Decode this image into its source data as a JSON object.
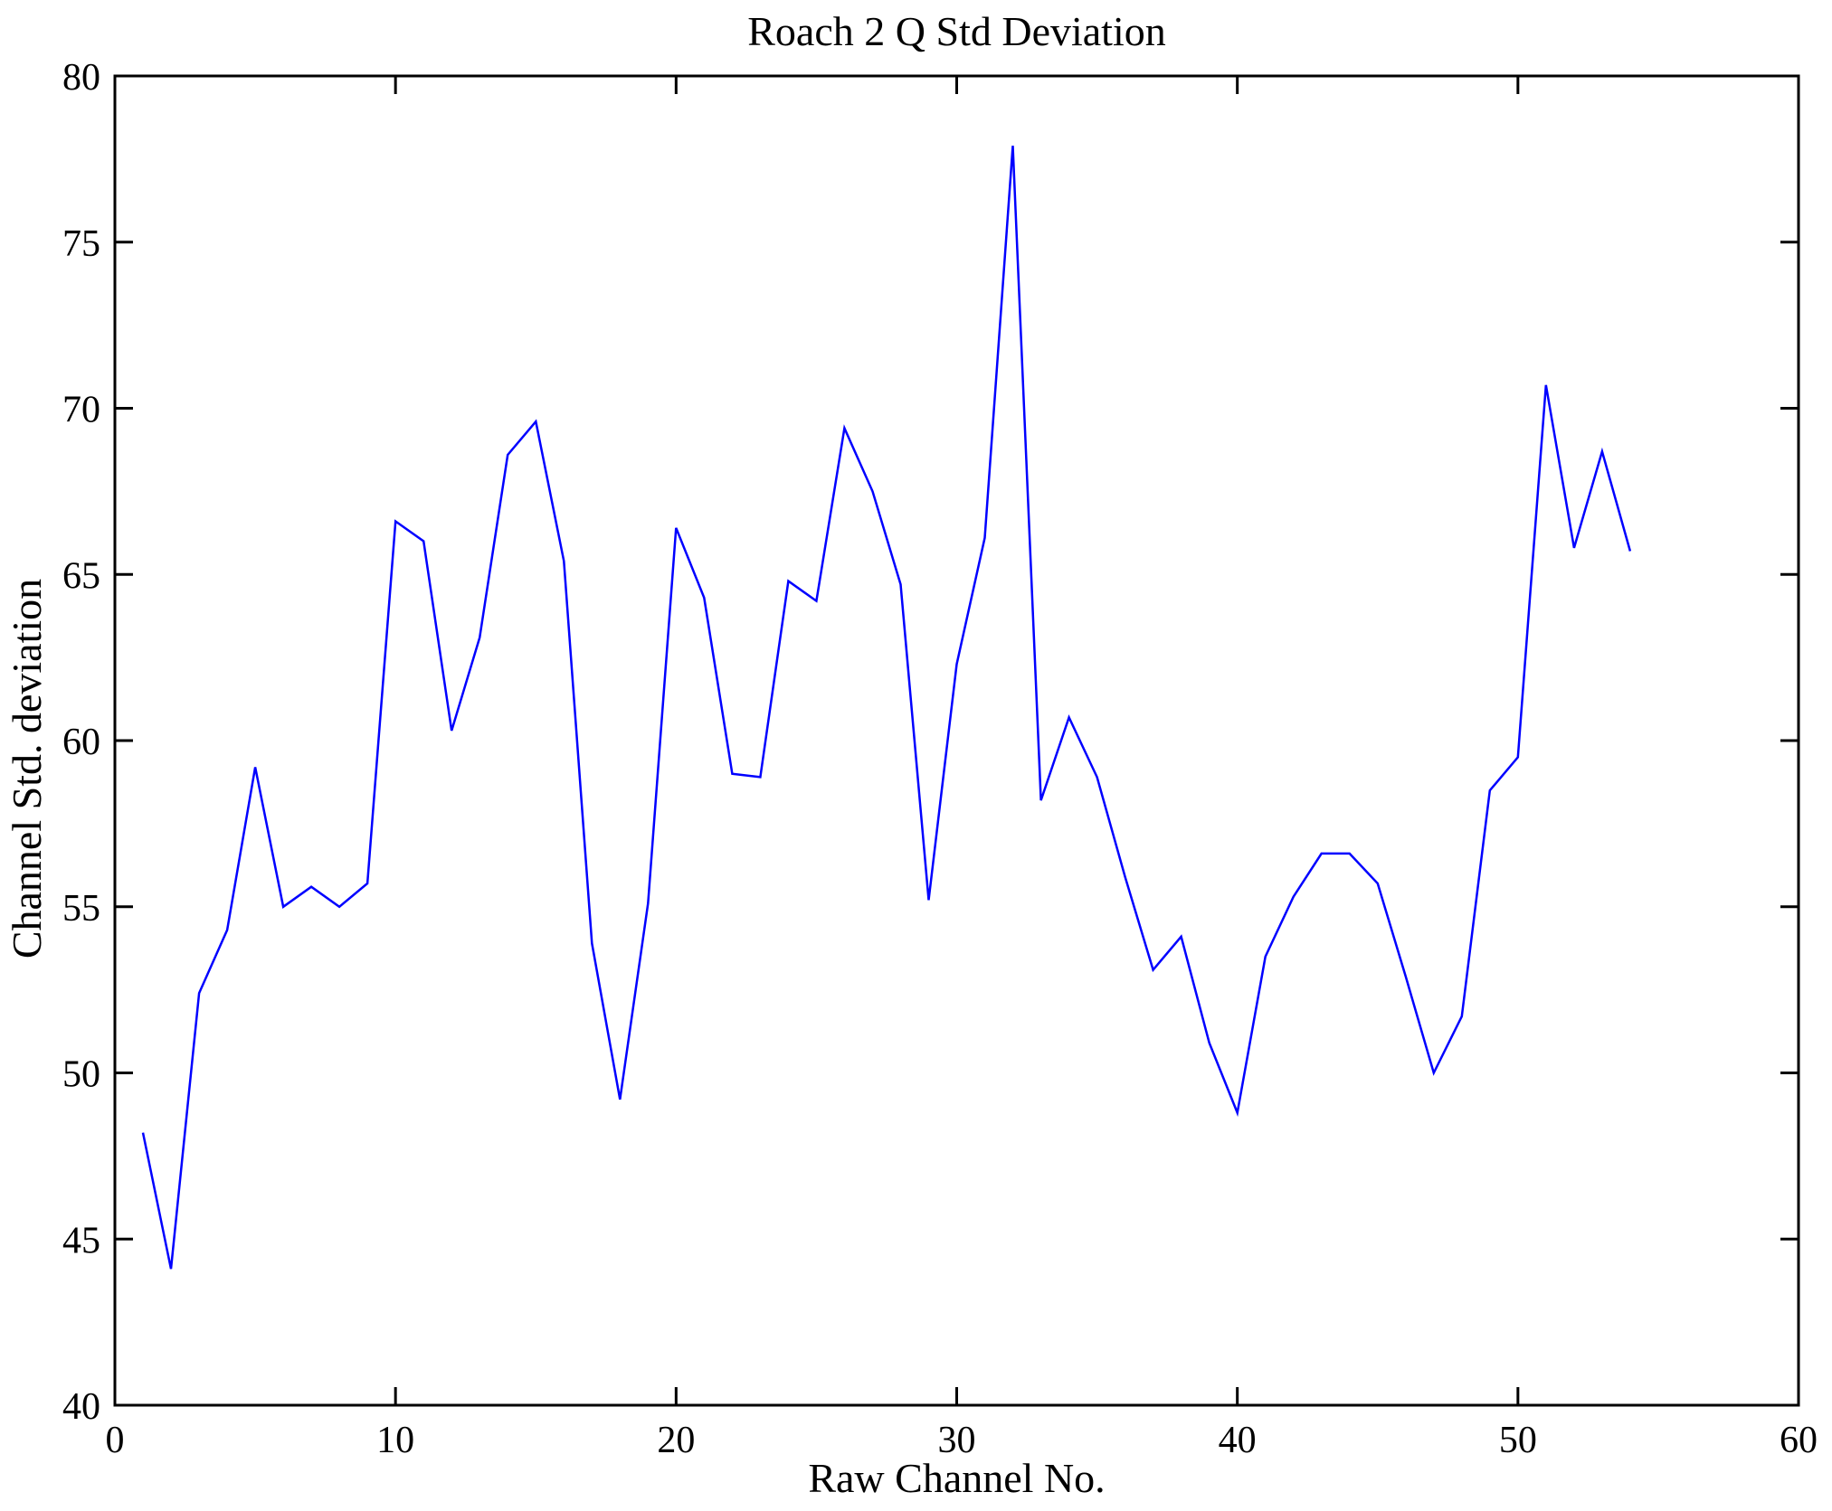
{
  "chart_data": {
    "type": "line",
    "title": "Roach 2 Q Std Deviation",
    "xlabel": "Raw Channel No.",
    "ylabel": "Channel Std. deviation",
    "xlim": [
      0,
      60
    ],
    "ylim": [
      40,
      80
    ],
    "xticks": [
      0,
      10,
      20,
      30,
      40,
      50,
      60
    ],
    "yticks": [
      40,
      45,
      50,
      55,
      60,
      65,
      70,
      75,
      80
    ],
    "grid": false,
    "legend": "none",
    "line_color": "#0000FF",
    "axis_color": "#000000",
    "background_color": "#FFFFFF",
    "x": [
      1,
      2,
      3,
      4,
      5,
      6,
      7,
      8,
      9,
      10,
      11,
      12,
      13,
      14,
      15,
      16,
      17,
      18,
      19,
      20,
      21,
      22,
      23,
      24,
      25,
      26,
      27,
      28,
      29,
      30,
      31,
      32,
      33,
      34,
      35,
      36,
      37,
      38,
      39,
      40,
      41,
      42,
      43,
      44,
      45,
      46,
      47,
      48,
      49,
      50,
      51,
      52,
      53,
      54
    ],
    "values": [
      48.2,
      44.1,
      52.4,
      54.3,
      59.2,
      55.0,
      55.6,
      55.0,
      55.7,
      66.6,
      66.0,
      60.3,
      63.1,
      68.6,
      69.6,
      65.4,
      53.9,
      49.2,
      55.1,
      66.4,
      64.3,
      59.0,
      58.9,
      64.8,
      64.2,
      69.4,
      67.5,
      64.7,
      55.2,
      62.3,
      66.1,
      77.9,
      58.2,
      60.7,
      58.9,
      55.9,
      53.1,
      54.1,
      50.9,
      48.8,
      53.5,
      55.3,
      56.6,
      56.6,
      55.7,
      52.9,
      50.0,
      51.7,
      58.5,
      59.5,
      70.7,
      65.8,
      68.7,
      65.7
    ]
  }
}
